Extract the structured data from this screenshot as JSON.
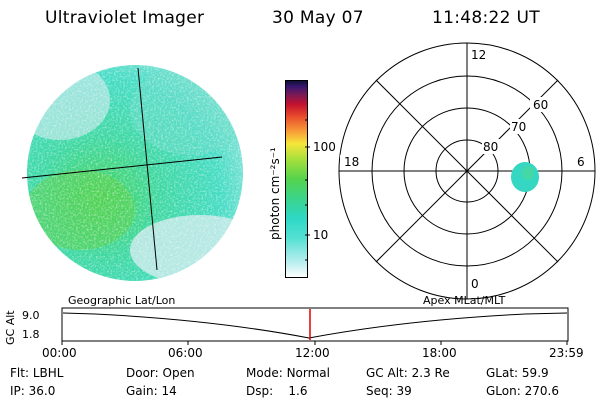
{
  "header": {
    "instrument": "Ultraviolet Imager",
    "date": "30 May 07",
    "time": "11:48:22 UT"
  },
  "colorbar": {
    "unit_label": "photon cm⁻²s⁻¹",
    "tick_labels": [
      "100",
      "10"
    ],
    "scale": "log"
  },
  "polar_plot": {
    "hour_labels": [
      "12",
      "18",
      "6",
      "0"
    ],
    "lat_labels": [
      "60",
      "70",
      "80"
    ]
  },
  "timeline": {
    "left_caption": "Geographic Lat/Lon",
    "right_caption": "Apex MLat/MLT",
    "axis_title": "GC Alt",
    "y_ticks": [
      "9.0",
      "1.8"
    ],
    "time_ticks": [
      "00:00",
      "06:00",
      "12:00",
      "18:00",
      "23:59"
    ],
    "marker_color": "#dd0000"
  },
  "status": {
    "row1": [
      {
        "label": "Flt:",
        "value": "LBHL"
      },
      {
        "label": "Door:",
        "value": "Open"
      },
      {
        "label": "Mode:",
        "value": "Normal"
      },
      {
        "label": "GC Alt:",
        "value": "2.3 Re"
      },
      {
        "label": "GLat:",
        "value": "59.9"
      }
    ],
    "row2": [
      {
        "label": "IP:",
        "value": "36.0"
      },
      {
        "label": "Gain:",
        "value": "14"
      },
      {
        "label": "Dsp:",
        "value": "1.6"
      },
      {
        "label": "Seq:",
        "value": "39"
      },
      {
        "label": "GLon:",
        "value": "270.6"
      }
    ]
  },
  "colors": {
    "disk_dominant": "#3dd6b2",
    "disk_light": "#c4e9ea",
    "disk_green": "#46d45e",
    "spot": "#30d6c8"
  }
}
